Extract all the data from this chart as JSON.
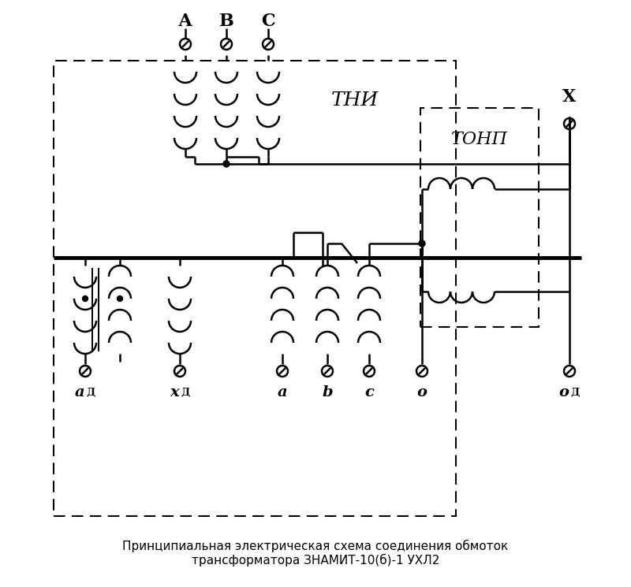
{
  "title_line1": "Принципиальная электрическая схема соединения обмоток",
  "title_line2": "трансформатора ЗНАМИТ-10(б)-1 УХЛ2",
  "bg_color": "#ffffff",
  "tni_label": "ТНИ",
  "tonp_label": "ТОНП",
  "phase_labels": [
    "А",
    "В",
    "С"
  ],
  "x_label": "Х",
  "figsize": [
    8.0,
    7.45
  ],
  "dpi": 100
}
